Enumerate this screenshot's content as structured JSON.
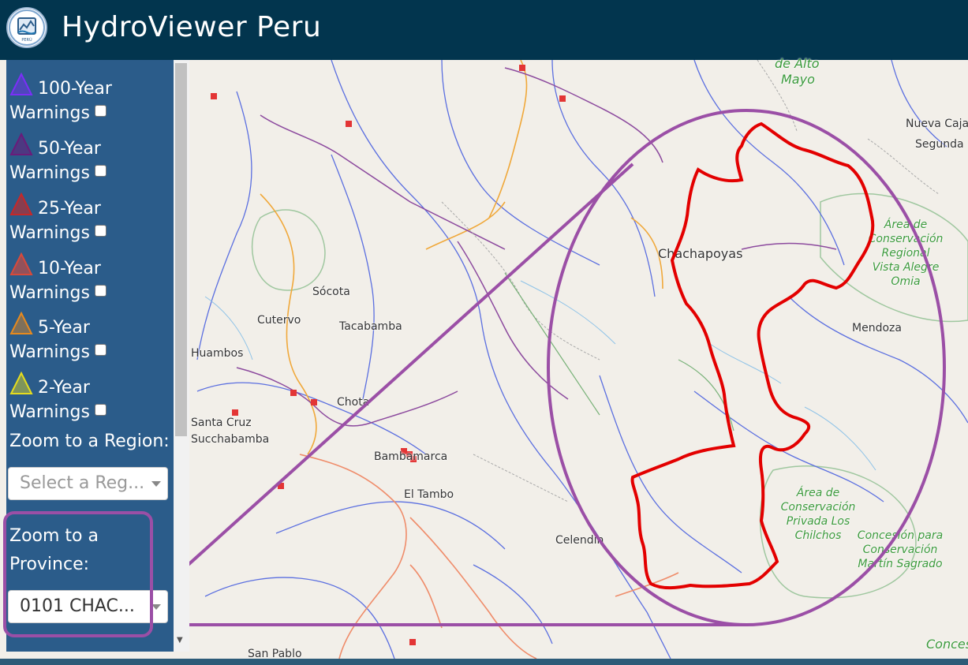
{
  "header": {
    "title": "HydroViewer Peru",
    "logo_text": "PERÚ"
  },
  "sidebar": {
    "warnings": [
      {
        "period": "100-Year",
        "label": "Warnings",
        "color": "#7b2ff7",
        "checked": false
      },
      {
        "period": "50-Year",
        "label": "Warnings",
        "color": "#6a1b7a",
        "checked": false
      },
      {
        "period": "25-Year",
        "label": "Warnings",
        "color": "#c62828",
        "checked": false
      },
      {
        "period": "10-Year",
        "label": "Warnings",
        "color": "#d84a3a",
        "checked": false
      },
      {
        "period": "5-Year",
        "label": "Warnings",
        "color": "#e68a1e",
        "checked": false
      },
      {
        "period": "2-Year",
        "label": "Warnings",
        "color": "#e6dc1e",
        "checked": false
      }
    ],
    "region_label": "Zoom to a Region:",
    "region_placeholder": "Select a Reg...",
    "province_label_line1": "Zoom to a",
    "province_label_line2": "Province:",
    "province_value": "0101 CHAC..."
  },
  "map": {
    "labels": [
      {
        "text": "de Alto",
        "kind": "green"
      },
      {
        "text": "Mayo",
        "kind": "green"
      },
      {
        "text": "Nueva Caja",
        "kind": "place"
      },
      {
        "text": "Segunda",
        "kind": "place"
      },
      {
        "text": "Chachapoyas",
        "kind": "city"
      },
      {
        "text": "Área de Conservación Regional Vista Alegre Omia",
        "kind": "green"
      },
      {
        "text": "Mendoza",
        "kind": "place"
      },
      {
        "text": "Sócota",
        "kind": "place"
      },
      {
        "text": "Cutervo",
        "kind": "place"
      },
      {
        "text": "Tacabamba",
        "kind": "place"
      },
      {
        "text": "Huambos",
        "kind": "place"
      },
      {
        "text": "Chota",
        "kind": "place"
      },
      {
        "text": "Santa Cruz",
        "kind": "place"
      },
      {
        "text": "Succhabamba",
        "kind": "place"
      },
      {
        "text": "Bambamarca",
        "kind": "place"
      },
      {
        "text": "El Tambo",
        "kind": "place"
      },
      {
        "text": "Celendín",
        "kind": "place"
      },
      {
        "text": "Área de Conservación Privada Los Chilchos",
        "kind": "green"
      },
      {
        "text": "Concesión para Conservación Martín Sagrado",
        "kind": "green"
      },
      {
        "text": "San Pablo",
        "kind": "place"
      },
      {
        "text": "Conces",
        "kind": "green"
      }
    ]
  },
  "colors": {
    "header_bg": "#02354e",
    "sidebar_bg": "#2b5c8a",
    "highlight_outline": "#9b4fa6",
    "province_boundary": "#e30000"
  }
}
